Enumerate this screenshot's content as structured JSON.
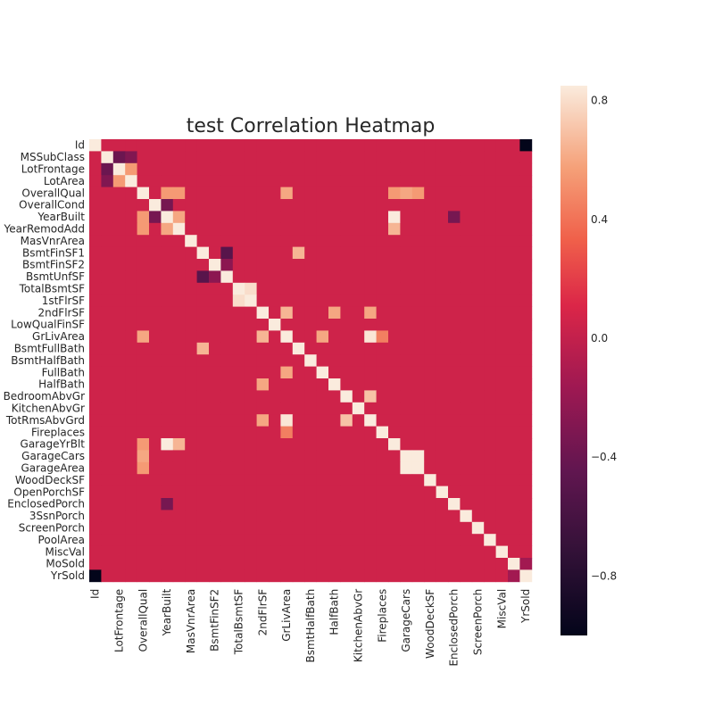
{
  "chart_data": {
    "type": "heatmap",
    "title": "test Correlation Heatmap",
    "variables": [
      "Id",
      "MSSubClass",
      "LotFrontage",
      "LotArea",
      "OverallQual",
      "OverallCond",
      "YearBuilt",
      "YearRemodAdd",
      "MasVnrArea",
      "BsmtFinSF1",
      "BsmtFinSF2",
      "BsmtUnfSF",
      "TotalBsmtSF",
      "1stFlrSF",
      "2ndFlrSF",
      "LowQualFinSF",
      "GrLivArea",
      "BsmtFullBath",
      "BsmtHalfBath",
      "FullBath",
      "HalfBath",
      "BedroomAbvGr",
      "KitchenAbvGr",
      "TotRmsAbvGrd",
      "Fireplaces",
      "GarageYrBlt",
      "GarageCars",
      "GarageArea",
      "WoodDeckSF",
      "OpenPorchSF",
      "EnclosedPorch",
      "3SsnPorch",
      "ScreenPorch",
      "PoolArea",
      "MiscVal",
      "MoSold",
      "YrSold"
    ],
    "x_tick_labels": [
      "Id",
      "LotFrontage",
      "OverallQual",
      "YearBuilt",
      "MasVnrArea",
      "BsmtFinSF2",
      "TotalBsmtSF",
      "2ndFlrSF",
      "GrLivArea",
      "BsmtHalfBath",
      "HalfBath",
      "KitchenAbvGr",
      "Fireplaces",
      "GarageCars",
      "WoodDeckSF",
      "EnclosedPorch",
      "ScreenPorch",
      "MiscVal",
      "YrSold"
    ],
    "colorbar": {
      "min": -1.0,
      "max": 0.85,
      "ticks": [
        -0.8,
        -0.4,
        0.0,
        0.4,
        0.8
      ],
      "tick_labels": [
        "−0.8",
        "−0.4",
        "0.0",
        "0.4",
        "0.8"
      ]
    },
    "notable_correlations": [
      [
        "Id",
        "YrSold",
        -1.0
      ],
      [
        "MSSubClass",
        "LotFrontage",
        -0.4
      ],
      [
        "MSSubClass",
        "LotArea",
        -0.3
      ],
      [
        "LotFrontage",
        "LotArea",
        0.55
      ],
      [
        "OverallQual",
        "YearBuilt",
        0.55
      ],
      [
        "OverallQual",
        "YearRemodAdd",
        0.55
      ],
      [
        "OverallQual",
        "GrLivArea",
        0.6
      ],
      [
        "OverallQual",
        "GarageCars",
        0.6
      ],
      [
        "OverallQual",
        "GarageArea",
        0.55
      ],
      [
        "OverallQual",
        "GarageYrBlt",
        0.55
      ],
      [
        "OverallCond",
        "YearBuilt",
        -0.35
      ],
      [
        "YearBuilt",
        "YearRemodAdd",
        0.6
      ],
      [
        "YearBuilt",
        "GarageYrBlt",
        0.85
      ],
      [
        "YearRemodAdd",
        "GarageYrBlt",
        0.65
      ],
      [
        "BsmtFinSF1",
        "BsmtUnfSF",
        -0.5
      ],
      [
        "BsmtFinSF1",
        "BsmtFullBath",
        0.65
      ],
      [
        "BsmtFinSF2",
        "BsmtUnfSF",
        -0.25
      ],
      [
        "TotalBsmtSF",
        "1stFlrSF",
        0.8
      ],
      [
        "2ndFlrSF",
        "GrLivArea",
        0.65
      ],
      [
        "2ndFlrSF",
        "HalfBath",
        0.6
      ],
      [
        "2ndFlrSF",
        "TotRmsAbvGrd",
        0.6
      ],
      [
        "GrLivArea",
        "TotRmsAbvGrd",
        0.83
      ],
      [
        "GrLivArea",
        "FullBath",
        0.6
      ],
      [
        "BedroomAbvGr",
        "TotRmsAbvGrd",
        0.7
      ],
      [
        "GarageCars",
        "GarageArea",
        0.85
      ],
      [
        "YearBuilt",
        "EnclosedPorch",
        -0.35
      ],
      [
        "Fireplaces",
        "GrLivArea",
        0.45
      ],
      [
        "MoSold",
        "YrSold",
        -0.15
      ]
    ]
  }
}
